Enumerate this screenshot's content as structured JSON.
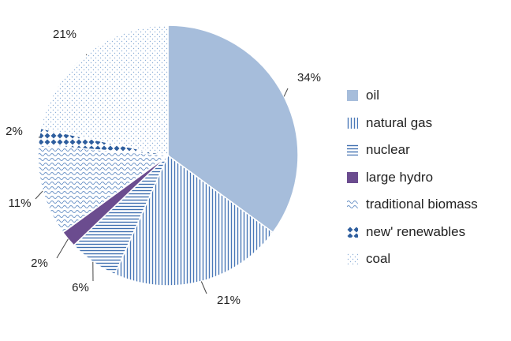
{
  "chart_data": {
    "type": "pie",
    "title": "",
    "slices": [
      {
        "name": "oil",
        "value": 34,
        "label": "34%",
        "color": "#a6bddb",
        "pattern": "solid"
      },
      {
        "name": "natural gas",
        "value": 21,
        "label": "21%",
        "color": "#4a78b8",
        "pattern": "vertical-lines"
      },
      {
        "name": "nuclear",
        "value": 6,
        "label": "6%",
        "color": "#3f6fb0",
        "pattern": "horizontal-lines"
      },
      {
        "name": "large hydro",
        "value": 2,
        "label": "2%",
        "color": "#6b4c8f",
        "pattern": "solid"
      },
      {
        "name": "traditional biomass",
        "value": 11,
        "label": "11%",
        "color": "#6e95c8",
        "pattern": "waves"
      },
      {
        "name": "new' renewables",
        "value": 2,
        "label": "2%",
        "color": "#2e5e9e",
        "pattern": "diamonds"
      },
      {
        "name": "coal",
        "value": 21,
        "label": "21%",
        "color": "#8fb0d8",
        "pattern": "dots"
      }
    ],
    "legend_position": "right",
    "start": "12 o'clock, clockwise"
  }
}
